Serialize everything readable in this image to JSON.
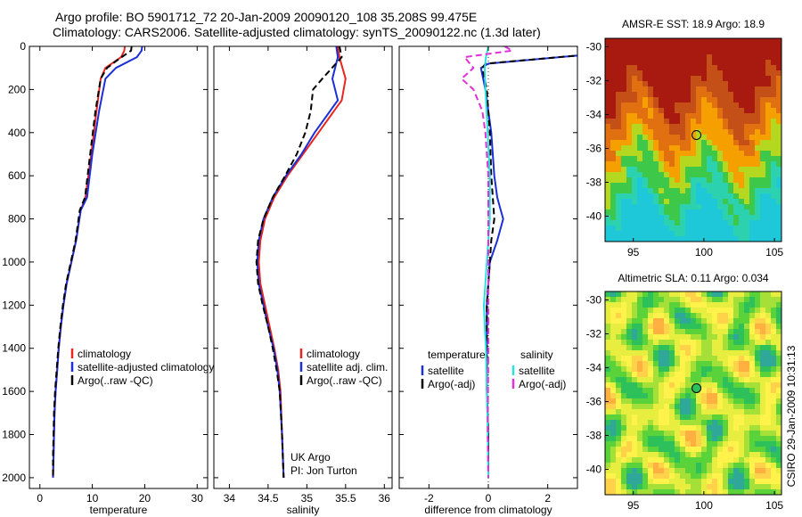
{
  "header": {
    "line1": "Argo profile: BO 5901712_72 20-Jan-2009 20090120_108 35.208S 99.475E",
    "line2": "Climatology: CARS2006. Satellite-adjusted climatology: synTS_20090122.nc (1.3d later)"
  },
  "side_stamp": "CSIRO 29-Jan-2009 10:31:13",
  "colors": {
    "red": "#e8251e",
    "blue": "#1a2fd8",
    "black": "#000000",
    "cyan": "#2fe0e0",
    "magenta": "#e030d8"
  },
  "chart_data": [
    {
      "type": "line",
      "name": "temperature",
      "xlabel": "temperature",
      "xlim": [
        -2,
        32
      ],
      "ylim": [
        2050,
        0
      ],
      "xticks": [
        0,
        10,
        20,
        30
      ],
      "yticks": [
        0,
        200,
        400,
        600,
        800,
        1000,
        1200,
        1400,
        1600,
        1800,
        2000
      ],
      "legend": [
        "climatology",
        "satellite-adjusted climatology",
        "Argo(..raw -QC)"
      ],
      "series": [
        {
          "color": "red",
          "dash": "",
          "x": [
            16.2,
            16.1,
            15.5,
            12.5,
            11.6,
            10.8,
            9.8,
            8.7,
            7.8,
            6.9,
            6.0,
            5.1,
            4.5,
            4.0,
            3.6,
            3.3,
            3.0,
            2.8,
            2.7,
            2.6,
            2.5
          ],
          "y": [
            0,
            20,
            50,
            100,
            150,
            300,
            500,
            700,
            760,
            900,
            1000,
            1100,
            1200,
            1300,
            1400,
            1500,
            1600,
            1700,
            1800,
            1900,
            2000
          ]
        },
        {
          "color": "blue",
          "dash": "",
          "x": [
            19.5,
            19.4,
            18.5,
            14.5,
            12.5,
            11.3,
            10.0,
            9.0,
            7.8,
            6.9,
            6.0,
            5.1,
            4.5,
            4.0,
            3.6,
            3.3,
            3.0,
            2.8,
            2.7,
            2.6,
            2.5
          ],
          "y": [
            0,
            20,
            50,
            100,
            150,
            300,
            500,
            700,
            760,
            900,
            1000,
            1100,
            1200,
            1300,
            1400,
            1500,
            1600,
            1700,
            1800,
            1900,
            2000
          ]
        },
        {
          "color": "black",
          "dash": "7,4",
          "x": [
            17.5,
            17.4,
            15.0,
            12.8,
            11.6,
            10.6,
            9.6,
            8.6,
            7.6,
            6.8,
            5.9,
            5.0,
            4.4,
            3.9,
            3.5,
            3.2,
            2.9,
            2.7,
            2.6,
            2.5,
            2.5
          ],
          "y": [
            0,
            20,
            60,
            100,
            150,
            300,
            500,
            700,
            760,
            900,
            1000,
            1100,
            1200,
            1300,
            1400,
            1500,
            1600,
            1700,
            1800,
            1900,
            2000
          ]
        }
      ]
    },
    {
      "type": "line",
      "name": "salinity",
      "xlabel": "salinity",
      "xlim": [
        33.8,
        36.1
      ],
      "ylim": [
        2050,
        0
      ],
      "xticks": [
        34,
        34.5,
        35,
        35.5,
        36
      ],
      "xticklabels": [
        "34",
        "34.5",
        "35",
        "35.5",
        "36"
      ],
      "yticks": [
        0,
        200,
        400,
        600,
        800,
        1000,
        1200,
        1400,
        1600,
        1800,
        2000
      ],
      "legend": [
        "climatology",
        "satellite adj. clim.",
        "Argo(..raw -QC)"
      ],
      "annotation": [
        "UK Argo",
        "PI: Jon Turton"
      ],
      "series": [
        {
          "color": "red",
          "dash": "",
          "x": [
            35.4,
            35.42,
            35.5,
            35.45,
            35.35,
            35.15,
            34.95,
            34.75,
            34.58,
            34.46,
            34.4,
            34.38,
            34.4,
            34.46,
            34.52,
            34.58,
            34.63,
            34.66,
            34.68,
            34.7
          ],
          "y": [
            0,
            50,
            150,
            250,
            300,
            400,
            500,
            600,
            700,
            800,
            900,
            1000,
            1100,
            1200,
            1300,
            1400,
            1500,
            1600,
            1800,
            2000
          ]
        },
        {
          "color": "blue",
          "dash": "",
          "x": [
            35.38,
            35.4,
            35.33,
            35.4,
            35.3,
            35.1,
            34.93,
            34.73,
            34.56,
            34.44,
            34.38,
            34.36,
            34.38,
            34.44,
            34.5,
            34.57,
            34.62,
            34.65,
            34.68,
            34.7
          ],
          "y": [
            0,
            50,
            150,
            250,
            300,
            400,
            500,
            600,
            700,
            800,
            900,
            1000,
            1100,
            1200,
            1300,
            1400,
            1500,
            1600,
            1800,
            2000
          ]
        },
        {
          "color": "black",
          "dash": "7,4",
          "x": [
            35.42,
            35.45,
            35.2,
            35.08,
            35.05,
            34.98,
            34.87,
            34.72,
            34.56,
            34.44,
            34.37,
            34.35,
            34.37,
            34.43,
            34.5,
            34.56,
            34.61,
            34.65,
            34.68,
            34.7
          ],
          "y": [
            0,
            50,
            150,
            200,
            300,
            400,
            500,
            600,
            700,
            800,
            900,
            1000,
            1100,
            1200,
            1300,
            1400,
            1500,
            1600,
            1800,
            2000
          ]
        }
      ]
    },
    {
      "type": "line",
      "name": "difference",
      "xlabel": "difference from climatology",
      "xlim": [
        -3,
        3
      ],
      "ylim": [
        2050,
        0
      ],
      "xticks": [
        -2,
        0,
        2
      ],
      "yticks": [
        0,
        200,
        400,
        600,
        800,
        1000,
        1200,
        1400,
        1600,
        1800,
        2000
      ],
      "legend_left_title": "temperature",
      "legend_right_title": "salinity",
      "legend_left": [
        "satellite",
        "Argo(-adj)"
      ],
      "legend_right": [
        "satellite",
        "Argo(-adj)"
      ],
      "series": [
        {
          "color": "blue",
          "dash": "",
          "x": [
            3.0,
            3.2,
            0.0,
            -0.25,
            -0.1,
            0.1,
            0.2,
            0.3,
            0.4,
            0.5,
            0.3,
            0.05,
            0.0,
            -0.05,
            -0.05,
            -0.05,
            -0.05,
            0.0,
            0.0
          ],
          "y": [
            0,
            40,
            80,
            100,
            200,
            400,
            600,
            700,
            750,
            800,
            900,
            1000,
            1100,
            1200,
            1300,
            1400,
            1600,
            1800,
            2000
          ]
        },
        {
          "color": "black",
          "dash": "7,4",
          "x": [
            3.0,
            3.2,
            -0.1,
            -0.2,
            -0.05,
            0.05,
            0.1,
            0.15,
            0.2,
            0.1,
            0.05,
            0.0,
            -0.05,
            -0.05,
            -0.05,
            0.0,
            0.0
          ],
          "y": [
            0,
            40,
            80,
            100,
            200,
            400,
            600,
            700,
            800,
            900,
            1000,
            1100,
            1200,
            1400,
            1600,
            1800,
            2000
          ]
        },
        {
          "color": "cyan",
          "dash": "",
          "x": [
            0.0,
            -0.08,
            -0.12,
            -0.1,
            -0.02,
            0.05,
            0.05,
            0.0,
            -0.05,
            -0.1,
            -0.15,
            -0.12,
            -0.08,
            -0.05,
            -0.02,
            0.0
          ],
          "y": [
            0,
            50,
            100,
            200,
            400,
            600,
            800,
            900,
            1000,
            1100,
            1200,
            1300,
            1400,
            1600,
            1800,
            2000
          ]
        },
        {
          "color": "magenta",
          "dash": "7,4",
          "x": [
            0.55,
            0.8,
            -0.8,
            -0.5,
            -0.9,
            -0.5,
            -0.2,
            -0.1,
            0.0,
            0.0,
            0.0,
            -0.02,
            0.0
          ],
          "y": [
            0,
            20,
            50,
            100,
            150,
            200,
            300,
            400,
            600,
            1000,
            1400,
            1800,
            2000
          ]
        }
      ]
    },
    {
      "type": "heatmap",
      "name": "sst_map",
      "title": "AMSR-E SST: 18.9 Argo: 18.9",
      "xlim": [
        93,
        105.5
      ],
      "ylim": [
        -41.5,
        -29.5
      ],
      "xticks": [
        95,
        100,
        105
      ],
      "yticks": [
        -30,
        -32,
        -34,
        -36,
        -38,
        -40
      ],
      "marker": {
        "x": 99.475,
        "y": -35.208
      },
      "palette": [
        "#1ec8d8",
        "#2cd2b0",
        "#3ec84a",
        "#b4d820",
        "#f5a000",
        "#e07010",
        "#c45018",
        "#a81a10"
      ]
    },
    {
      "type": "heatmap",
      "name": "sla_map",
      "title": "Altimetric SLA: 0.11 Argo: 0.034",
      "xlim": [
        93,
        105.5
      ],
      "ylim": [
        -41.5,
        -29.5
      ],
      "xticks": [
        95,
        100,
        105
      ],
      "yticks": [
        -30,
        -32,
        -34,
        -36,
        -38,
        -40
      ],
      "marker": {
        "x": 99.475,
        "y": -35.208
      },
      "palette": [
        "#2fa89a",
        "#2ec05a",
        "#5ad23a",
        "#a4e038",
        "#e8ee40",
        "#fff24a",
        "#ffd24a",
        "#ffb040"
      ]
    }
  ]
}
